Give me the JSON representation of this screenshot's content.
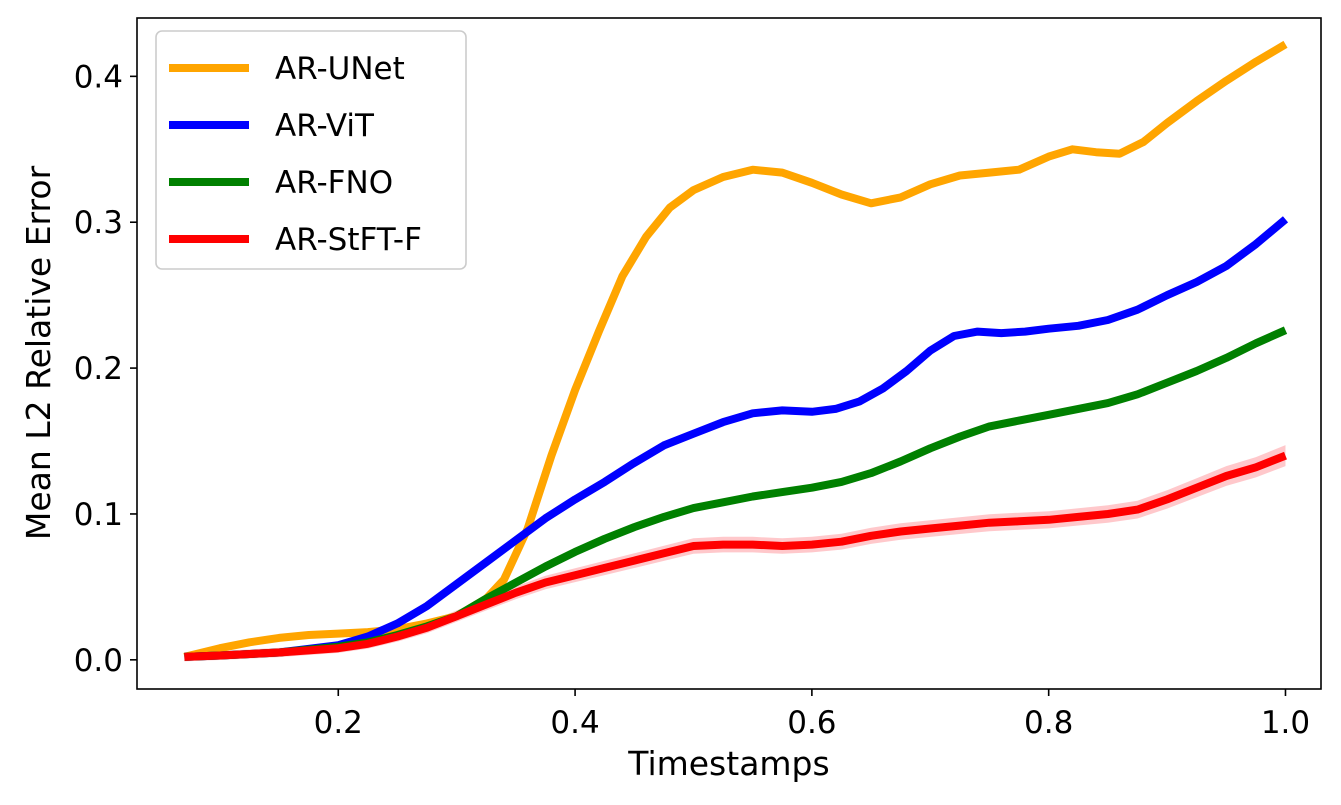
{
  "chart_data": {
    "type": "line",
    "title": "",
    "xlabel": "Timestamps",
    "ylabel": "Mean L2 Relative Error",
    "xlim": [
      0.03,
      1.03
    ],
    "ylim": [
      -0.02,
      0.44
    ],
    "xticks": [
      0.2,
      0.4,
      0.6,
      0.8,
      1.0
    ],
    "xtick_labels": [
      "0.2",
      "0.4",
      "0.6",
      "0.8",
      "1.0"
    ],
    "yticks": [
      0.0,
      0.1,
      0.2,
      0.3,
      0.4
    ],
    "ytick_labels": [
      "0.0",
      "0.1",
      "0.2",
      "0.3",
      "0.4"
    ],
    "grid": false,
    "legend_position": "top-left",
    "series": [
      {
        "name": "AR-UNet",
        "color": "#ffa500",
        "points": [
          [
            0.07,
            0.002
          ],
          [
            0.1,
            0.008
          ],
          [
            0.125,
            0.012
          ],
          [
            0.15,
            0.015
          ],
          [
            0.175,
            0.017
          ],
          [
            0.2,
            0.018
          ],
          [
            0.225,
            0.019
          ],
          [
            0.25,
            0.021
          ],
          [
            0.275,
            0.025
          ],
          [
            0.3,
            0.03
          ],
          [
            0.325,
            0.042
          ],
          [
            0.34,
            0.055
          ],
          [
            0.36,
            0.09
          ],
          [
            0.38,
            0.14
          ],
          [
            0.4,
            0.185
          ],
          [
            0.42,
            0.225
          ],
          [
            0.44,
            0.263
          ],
          [
            0.46,
            0.29
          ],
          [
            0.48,
            0.31
          ],
          [
            0.5,
            0.322
          ],
          [
            0.525,
            0.331
          ],
          [
            0.55,
            0.336
          ],
          [
            0.575,
            0.334
          ],
          [
            0.6,
            0.327
          ],
          [
            0.625,
            0.319
          ],
          [
            0.65,
            0.313
          ],
          [
            0.675,
            0.317
          ],
          [
            0.7,
            0.326
          ],
          [
            0.725,
            0.332
          ],
          [
            0.75,
            0.334
          ],
          [
            0.775,
            0.336
          ],
          [
            0.8,
            0.345
          ],
          [
            0.82,
            0.35
          ],
          [
            0.84,
            0.348
          ],
          [
            0.86,
            0.347
          ],
          [
            0.88,
            0.355
          ],
          [
            0.9,
            0.368
          ],
          [
            0.925,
            0.383
          ],
          [
            0.95,
            0.397
          ],
          [
            0.975,
            0.41
          ],
          [
            1.0,
            0.422
          ]
        ]
      },
      {
        "name": "AR-ViT",
        "color": "#0000ff",
        "points": [
          [
            0.07,
            0.002
          ],
          [
            0.1,
            0.003
          ],
          [
            0.15,
            0.005
          ],
          [
            0.2,
            0.01
          ],
          [
            0.225,
            0.016
          ],
          [
            0.25,
            0.025
          ],
          [
            0.275,
            0.037
          ],
          [
            0.3,
            0.052
          ],
          [
            0.325,
            0.067
          ],
          [
            0.35,
            0.082
          ],
          [
            0.375,
            0.097
          ],
          [
            0.4,
            0.11
          ],
          [
            0.425,
            0.122
          ],
          [
            0.45,
            0.135
          ],
          [
            0.475,
            0.147
          ],
          [
            0.5,
            0.155
          ],
          [
            0.525,
            0.163
          ],
          [
            0.55,
            0.169
          ],
          [
            0.575,
            0.171
          ],
          [
            0.6,
            0.17
          ],
          [
            0.62,
            0.172
          ],
          [
            0.64,
            0.177
          ],
          [
            0.66,
            0.186
          ],
          [
            0.68,
            0.198
          ],
          [
            0.7,
            0.212
          ],
          [
            0.72,
            0.222
          ],
          [
            0.74,
            0.225
          ],
          [
            0.76,
            0.224
          ],
          [
            0.78,
            0.225
          ],
          [
            0.8,
            0.227
          ],
          [
            0.825,
            0.229
          ],
          [
            0.85,
            0.233
          ],
          [
            0.875,
            0.24
          ],
          [
            0.9,
            0.25
          ],
          [
            0.925,
            0.259
          ],
          [
            0.95,
            0.27
          ],
          [
            0.975,
            0.285
          ],
          [
            1.0,
            0.302
          ]
        ]
      },
      {
        "name": "AR-FNO",
        "color": "#008000",
        "points": [
          [
            0.07,
            0.002
          ],
          [
            0.1,
            0.003
          ],
          [
            0.15,
            0.005
          ],
          [
            0.2,
            0.009
          ],
          [
            0.225,
            0.012
          ],
          [
            0.25,
            0.017
          ],
          [
            0.275,
            0.023
          ],
          [
            0.3,
            0.03
          ],
          [
            0.325,
            0.042
          ],
          [
            0.35,
            0.053
          ],
          [
            0.375,
            0.064
          ],
          [
            0.4,
            0.074
          ],
          [
            0.425,
            0.083
          ],
          [
            0.45,
            0.091
          ],
          [
            0.475,
            0.098
          ],
          [
            0.5,
            0.104
          ],
          [
            0.525,
            0.108
          ],
          [
            0.55,
            0.112
          ],
          [
            0.575,
            0.115
          ],
          [
            0.6,
            0.118
          ],
          [
            0.625,
            0.122
          ],
          [
            0.65,
            0.128
          ],
          [
            0.675,
            0.136
          ],
          [
            0.7,
            0.145
          ],
          [
            0.725,
            0.153
          ],
          [
            0.75,
            0.16
          ],
          [
            0.775,
            0.164
          ],
          [
            0.8,
            0.168
          ],
          [
            0.825,
            0.172
          ],
          [
            0.85,
            0.176
          ],
          [
            0.875,
            0.182
          ],
          [
            0.9,
            0.19
          ],
          [
            0.925,
            0.198
          ],
          [
            0.95,
            0.207
          ],
          [
            0.975,
            0.217
          ],
          [
            1.0,
            0.226
          ]
        ]
      },
      {
        "name": "AR-StFT-F",
        "color": "#ff0000",
        "band_color": "#ff9aa0",
        "points": [
          [
            0.07,
            0.002
          ],
          [
            0.1,
            0.003
          ],
          [
            0.15,
            0.005
          ],
          [
            0.2,
            0.008
          ],
          [
            0.225,
            0.011
          ],
          [
            0.25,
            0.016
          ],
          [
            0.275,
            0.022
          ],
          [
            0.3,
            0.03
          ],
          [
            0.325,
            0.038
          ],
          [
            0.35,
            0.046
          ],
          [
            0.375,
            0.053
          ],
          [
            0.4,
            0.058
          ],
          [
            0.425,
            0.063
          ],
          [
            0.45,
            0.068
          ],
          [
            0.475,
            0.073
          ],
          [
            0.5,
            0.078
          ],
          [
            0.525,
            0.079
          ],
          [
            0.55,
            0.079
          ],
          [
            0.575,
            0.078
          ],
          [
            0.6,
            0.079
          ],
          [
            0.625,
            0.081
          ],
          [
            0.65,
            0.085
          ],
          [
            0.675,
            0.088
          ],
          [
            0.7,
            0.09
          ],
          [
            0.725,
            0.092
          ],
          [
            0.75,
            0.094
          ],
          [
            0.775,
            0.095
          ],
          [
            0.8,
            0.096
          ],
          [
            0.825,
            0.098
          ],
          [
            0.85,
            0.1
          ],
          [
            0.875,
            0.103
          ],
          [
            0.9,
            0.11
          ],
          [
            0.925,
            0.118
          ],
          [
            0.95,
            0.126
          ],
          [
            0.975,
            0.132
          ],
          [
            1.0,
            0.14
          ]
        ]
      }
    ]
  }
}
